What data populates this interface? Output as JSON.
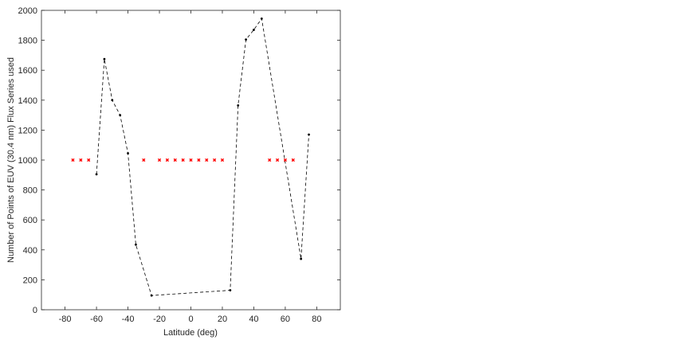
{
  "chart_data": {
    "type": "line",
    "xlabel": "Latitude (deg)",
    "ylabel": "Number of Points of EUV (30.4 nm) Flux Series used",
    "xlim": [
      -95,
      95
    ],
    "xticks": [
      -80,
      -60,
      -40,
      -20,
      0,
      20,
      40,
      60,
      80
    ],
    "ylim": [
      0,
      2000
    ],
    "yticks": [
      0,
      200,
      400,
      600,
      800,
      1000,
      1200,
      1400,
      1600,
      1800,
      2000
    ],
    "series": [
      {
        "color": "#000000",
        "line": "dashed",
        "marker": "dot",
        "x": [
          -60,
          -55,
          -50,
          -45,
          -40,
          -35,
          -25,
          25,
          30,
          35,
          40,
          45,
          70,
          75
        ],
        "values": [
          905,
          1675,
          1400,
          1300,
          1045,
          435,
          95,
          130,
          1365,
          1805,
          1870,
          1945,
          340,
          1170
        ]
      },
      {
        "color": "#ff0000",
        "line": "none",
        "marker": "star",
        "x": [
          -75,
          -70,
          -65,
          -30,
          -20,
          -15,
          -10,
          -5,
          0,
          5,
          10,
          15,
          20,
          50,
          55,
          60,
          65
        ],
        "values": [
          1000,
          1000,
          1000,
          1000,
          1000,
          1000,
          1000,
          1000,
          1000,
          1000,
          1000,
          1000,
          1000,
          1000,
          1000,
          1000,
          1000
        ]
      }
    ]
  }
}
